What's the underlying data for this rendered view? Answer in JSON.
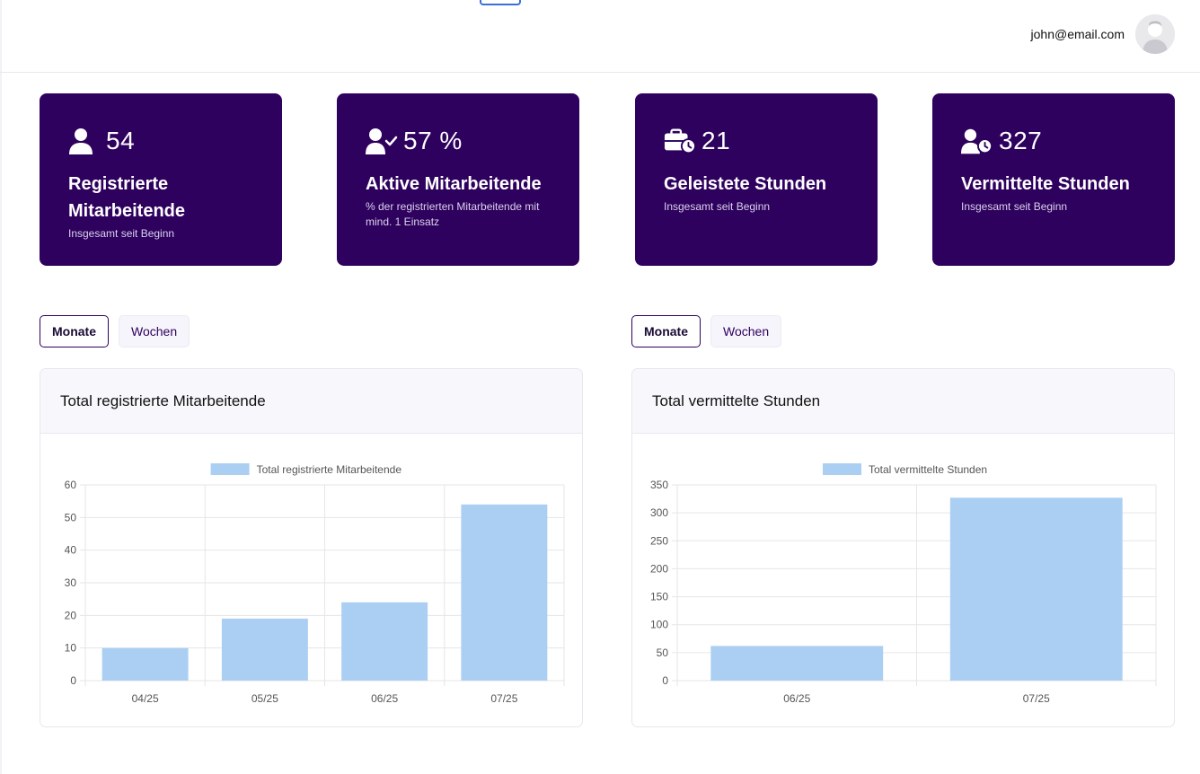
{
  "header": {
    "user_email": "john@email.com"
  },
  "kpis": [
    {
      "icon": "user-icon",
      "value": "54",
      "title": "Registrierte Mitarbeitende",
      "subtitle": "Insgesamt seit Beginn"
    },
    {
      "icon": "user-check-icon",
      "value": "57 %",
      "title": "Aktive Mitarbeitende",
      "subtitle": "% der registrierten Mitarbeitende mit mind. 1 Einsatz"
    },
    {
      "icon": "briefcase-clock-icon",
      "value": "21",
      "title": "Geleistete Stunden",
      "subtitle": "Insgesamt seit Beginn"
    },
    {
      "icon": "user-clock-icon",
      "value": "327",
      "title": "Vermittelte Stunden",
      "subtitle": "Insgesamt seit Beginn"
    }
  ],
  "toggles": {
    "left": {
      "monthly": "Monate",
      "weekly": "Wochen",
      "selected": "Monate"
    },
    "right": {
      "monthly": "Monate",
      "weekly": "Wochen",
      "selected": "Monate"
    }
  },
  "colors": {
    "brand": "#2e015e",
    "bar_fill": "#abcff3",
    "grid": "#e6e6e6"
  },
  "chart_data": [
    {
      "type": "bar",
      "title": "Total registrierte Mitarbeitende",
      "legend": "Total registrierte Mitarbeitende",
      "categories": [
        "04/25",
        "05/25",
        "06/25",
        "07/25"
      ],
      "values": [
        10,
        19,
        24,
        54
      ],
      "ylim": [
        0,
        60
      ],
      "yticks": [
        0,
        10,
        20,
        30,
        40,
        50,
        60
      ],
      "xlabel": "",
      "ylabel": ""
    },
    {
      "type": "bar",
      "title": "Total vermittelte Stunden",
      "legend": "Total vermittelte Stunden",
      "categories": [
        "06/25",
        "07/25"
      ],
      "values": [
        62,
        327
      ],
      "ylim": [
        0,
        350
      ],
      "yticks": [
        0,
        50,
        100,
        150,
        200,
        250,
        300,
        350
      ],
      "xlabel": "",
      "ylabel": ""
    }
  ]
}
